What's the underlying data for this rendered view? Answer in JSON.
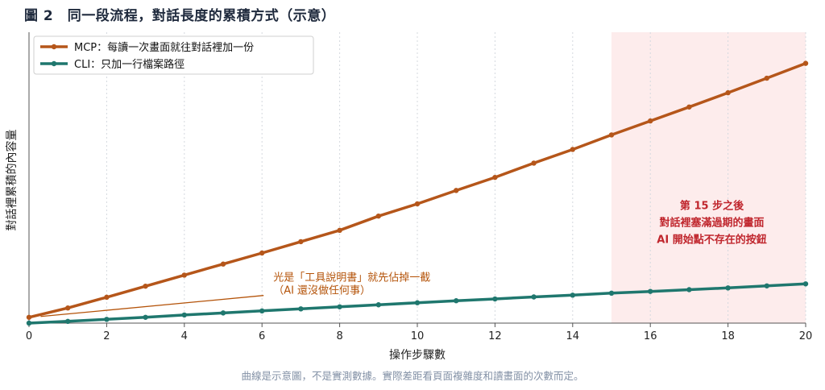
{
  "title": "圖 2　同一段流程，對話長度的累積方式（示意）",
  "caption": "曲線是示意圖，不是實測數據。實際差距看頁面複雜度和讀畫面的次數而定。",
  "chart_data": {
    "type": "line",
    "xlabel": "操作步驟數",
    "ylabel": "對話裡累積的內容量",
    "xlim": [
      0,
      20
    ],
    "ylim": [
      0,
      100
    ],
    "x_ticks": [
      0,
      2,
      4,
      6,
      8,
      10,
      12,
      14,
      16,
      18,
      20
    ],
    "grid": "vertical-dotted",
    "legend_position": "top-left",
    "series": [
      {
        "name": "MCP：每讀一次畫面就往對話裡加一份",
        "color": "#b5561a",
        "x": [
          0,
          1,
          2,
          3,
          4,
          5,
          6,
          7,
          8,
          9,
          10,
          11,
          12,
          13,
          14,
          15,
          16,
          17,
          18,
          19,
          20
        ],
        "y": [
          2,
          5.2,
          8.9,
          12.7,
          16.5,
          20.3,
          24.1,
          28,
          31.9,
          36.8,
          41,
          45.6,
          50.1,
          55,
          59.7,
          64.7,
          69.5,
          74.3,
          79.2,
          84.2,
          89.3
        ]
      },
      {
        "name": "CLI：只加一行檔案路徑",
        "color": "#1f776e",
        "x": [
          0,
          1,
          2,
          3,
          4,
          5,
          6,
          7,
          8,
          9,
          10,
          11,
          12,
          13,
          14,
          15,
          16,
          17,
          18,
          19,
          20
        ],
        "y": [
          0,
          0.6,
          1.3,
          2,
          2.8,
          3.5,
          4.2,
          4.9,
          5.6,
          6.3,
          7,
          7.7,
          8.3,
          9,
          9.6,
          10.3,
          10.9,
          11.5,
          12.1,
          12.8,
          13.5
        ]
      }
    ],
    "shaded_region": {
      "x_start": 15,
      "x_end": 20,
      "color": "#fdecec"
    },
    "annotations": [
      {
        "lines": [
          "光是「工具說明書」就先佔掉一截",
          "（AI 還沒做任何事）"
        ],
        "color": "#b45309",
        "anchor_x": 6,
        "anchor_y": 9.5,
        "arrow_to_x": 0.3,
        "arrow_to_y": 2
      },
      {
        "lines": [
          "第 15 步之後",
          "對話裡塞滿過期的畫面",
          "AI 開始點不存在的按鈕"
        ],
        "color": "#c0262d",
        "anchor_x": 17.5,
        "anchor_y": 32
      }
    ]
  }
}
